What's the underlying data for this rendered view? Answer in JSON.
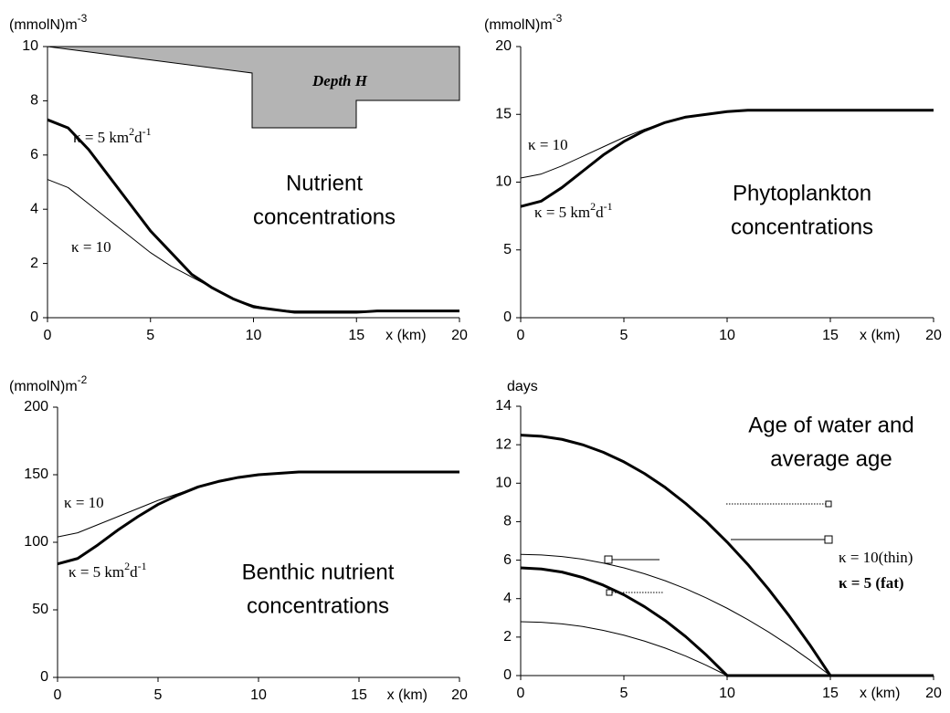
{
  "chart_data": [
    {
      "type": "line",
      "title": [
        "Nutrient",
        "concentrations"
      ],
      "ylabel": {
        "text": "(mmolN)m",
        "sup": "-3"
      },
      "xlabel": "x (km)",
      "x": [
        0,
        1,
        2,
        3,
        4,
        5,
        6,
        7,
        8,
        9,
        10,
        11,
        12,
        13,
        14,
        15,
        16,
        17,
        18,
        19,
        20
      ],
      "xlim": [
        0,
        20
      ],
      "xticks": [
        0,
        5,
        10,
        15,
        20
      ],
      "ylim": [
        0,
        10
      ],
      "yticks": [
        0,
        2,
        4,
        6,
        8,
        10
      ],
      "series": [
        {
          "color": "#000000",
          "width": 3,
          "values": [
            7.3,
            7.0,
            6.2,
            5.2,
            4.2,
            3.2,
            2.4,
            1.6,
            1.1,
            0.7,
            0.4,
            0.3,
            0.2,
            0.2,
            0.2,
            0.2,
            0.25,
            0.25,
            0.25,
            0.25,
            0.25
          ]
        },
        {
          "color": "#000000",
          "width": 1,
          "values": [
            5.1,
            4.8,
            4.2,
            3.6,
            3.0,
            2.4,
            1.9,
            1.5,
            1.1,
            0.7,
            0.45,
            0.3,
            0.25,
            0.25,
            0.25,
            0.25,
            0.25,
            0.25,
            0.25,
            0.25,
            0.25
          ]
        }
      ],
      "annotations": [
        {
          "parts": [
            {
              "text": "κ = 5 km"
            },
            {
              "text": "2",
              "sup": true
            },
            {
              "text": "d"
            },
            {
              "text": "-1",
              "sup": true
            }
          ]
        },
        {
          "parts": [
            {
              "text": "κ = 10"
            }
          ]
        },
        {
          "parts": [
            {
              "text": "Depth  H"
            }
          ],
          "bold": true,
          "italic": true
        }
      ]
    },
    {
      "type": "line",
      "title": [
        "Phytoplankton",
        "concentrations"
      ],
      "ylabel": {
        "text": "(mmolN)m",
        "sup": "-3"
      },
      "xlabel": "x (km)",
      "x": [
        0,
        1,
        2,
        3,
        4,
        5,
        6,
        7,
        8,
        9,
        10,
        11,
        12,
        13,
        14,
        15,
        16,
        17,
        18,
        19,
        20
      ],
      "xlim": [
        0,
        20
      ],
      "xticks": [
        0,
        5,
        10,
        15,
        20
      ],
      "ylim": [
        0,
        20
      ],
      "yticks": [
        0,
        5,
        10,
        15,
        20
      ],
      "series": [
        {
          "color": "#000000",
          "width": 3,
          "values": [
            8.2,
            8.6,
            9.6,
            10.8,
            12.0,
            13.0,
            13.8,
            14.4,
            14.8,
            15.0,
            15.2,
            15.3,
            15.3,
            15.3,
            15.3,
            15.3,
            15.3,
            15.3,
            15.3,
            15.3,
            15.3
          ]
        },
        {
          "color": "#000000",
          "width": 1,
          "values": [
            10.3,
            10.6,
            11.2,
            11.9,
            12.6,
            13.3,
            13.9,
            14.4,
            14.8,
            15.0,
            15.2,
            15.3,
            15.3,
            15.3,
            15.3,
            15.3,
            15.3,
            15.3,
            15.3,
            15.3,
            15.3
          ]
        }
      ],
      "annotations": [
        {
          "parts": [
            {
              "text": "κ = 10"
            }
          ]
        },
        {
          "parts": [
            {
              "text": "κ = 5 km"
            },
            {
              "text": "2",
              "sup": true
            },
            {
              "text": "d"
            },
            {
              "text": "-1",
              "sup": true
            }
          ]
        }
      ]
    },
    {
      "type": "line",
      "title": [
        "Benthic nutrient",
        "concentrations"
      ],
      "ylabel": {
        "text": "(mmolN)m",
        "sup": "-2"
      },
      "xlabel": "x (km)",
      "x": [
        0,
        1,
        2,
        3,
        4,
        5,
        6,
        7,
        8,
        9,
        10,
        11,
        12,
        13,
        14,
        15,
        16,
        17,
        18,
        19,
        20
      ],
      "xlim": [
        0,
        20
      ],
      "xticks": [
        0,
        5,
        10,
        15,
        20
      ],
      "ylim": [
        0,
        200
      ],
      "yticks": [
        0,
        50,
        100,
        150,
        200
      ],
      "series": [
        {
          "color": "#000000",
          "width": 3,
          "values": [
            84,
            88,
            98,
            109,
            119,
            128,
            135,
            141,
            145,
            148,
            150,
            151,
            152,
            152,
            152,
            152,
            152,
            152,
            152,
            152,
            152
          ]
        },
        {
          "color": "#000000",
          "width": 1,
          "values": [
            104,
            107,
            113,
            119,
            125,
            131,
            136,
            141,
            145,
            148,
            150,
            151,
            152,
            152,
            152,
            152,
            152,
            152,
            152,
            152,
            152
          ]
        }
      ],
      "annotations": [
        {
          "parts": [
            {
              "text": "κ = 10"
            }
          ]
        },
        {
          "parts": [
            {
              "text": "κ = 5 km"
            },
            {
              "text": "2",
              "sup": true
            },
            {
              "text": "d"
            },
            {
              "text": "-1",
              "sup": true
            }
          ]
        }
      ]
    },
    {
      "type": "line",
      "title": [
        "Age of water and",
        "average age"
      ],
      "ylabel": {
        "text": "days"
      },
      "xlabel": "x (km)",
      "x": [
        0,
        1,
        2,
        3,
        4,
        5,
        6,
        7,
        8,
        9,
        10,
        11,
        12,
        13,
        14,
        15,
        16,
        17,
        18,
        19,
        20
      ],
      "xlim": [
        0,
        20
      ],
      "xticks": [
        0,
        5,
        10,
        15,
        20
      ],
      "ylim": [
        0,
        14
      ],
      "yticks": [
        0,
        2,
        4,
        6,
        8,
        10,
        12,
        14
      ],
      "series": [
        {
          "color": "#000000",
          "width": 3,
          "values": [
            12.5,
            12.44,
            12.28,
            12.0,
            11.61,
            11.11,
            10.5,
            9.78,
            8.94,
            8.0,
            6.94,
            5.78,
            4.5,
            3.11,
            1.61,
            0,
            0,
            0,
            0,
            0,
            0
          ]
        },
        {
          "color": "#000000",
          "width": 1,
          "values": [
            6.3,
            6.27,
            6.19,
            6.05,
            5.85,
            5.6,
            5.29,
            4.93,
            4.51,
            4.03,
            3.5,
            2.91,
            2.27,
            1.57,
            0.81,
            0,
            0,
            0,
            0,
            0,
            0
          ]
        },
        {
          "color": "#000000",
          "width": 3,
          "values": [
            5.6,
            5.54,
            5.38,
            5.1,
            4.7,
            4.2,
            3.58,
            2.86,
            2.02,
            1.06,
            0,
            0,
            0,
            0,
            0,
            0,
            0,
            0,
            0,
            0,
            0
          ]
        },
        {
          "color": "#000000",
          "width": 1,
          "values": [
            2.8,
            2.77,
            2.69,
            2.55,
            2.35,
            2.1,
            1.79,
            1.43,
            1.01,
            0.53,
            0,
            0,
            0,
            0,
            0,
            0,
            0,
            0,
            0,
            0,
            0
          ]
        }
      ],
      "annotations": [
        {
          "parts": [
            {
              "text": "κ = 10(thin)"
            }
          ]
        },
        {
          "parts": [
            {
              "text": "κ = 5 (fat)"
            }
          ],
          "bold": true
        }
      ]
    }
  ]
}
